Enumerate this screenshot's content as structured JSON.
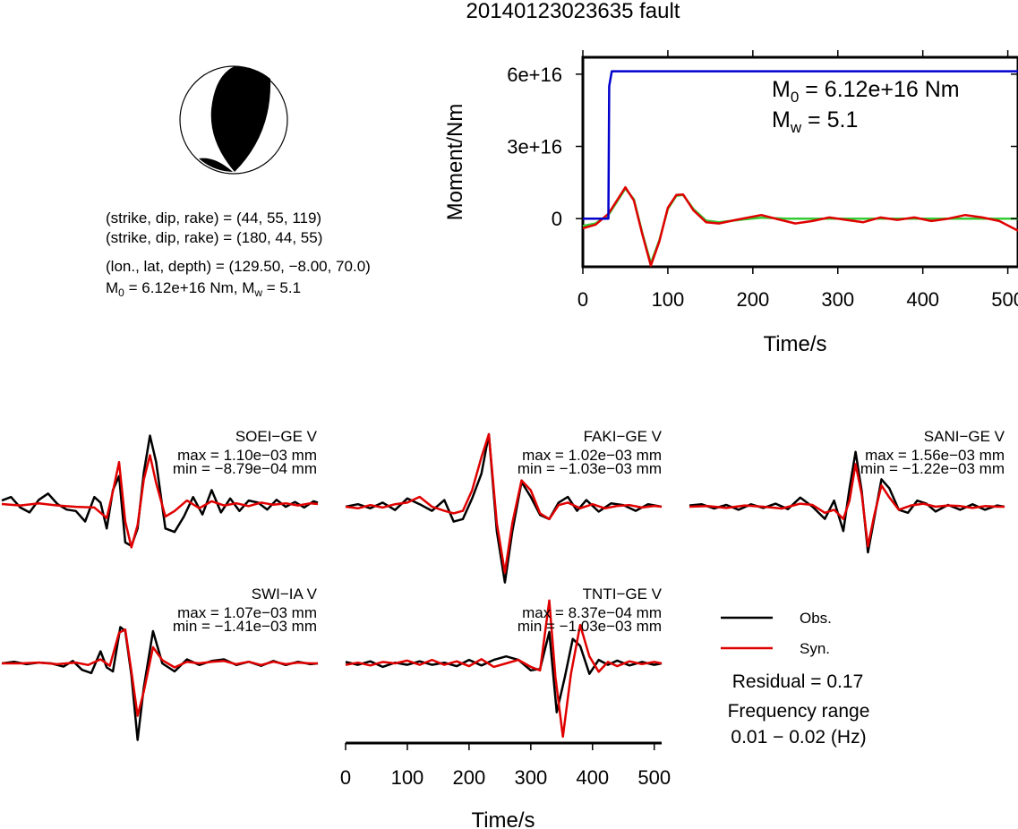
{
  "title": "20140123023635 fault",
  "mechanism": {
    "line1": "(strike, dip, rake) = (44, 55, 119)",
    "line2": "(strike, dip, rake) = (180, 44, 55)",
    "line3": "(lon., lat, depth) = (129.50, −8.00, 70.0)",
    "m0_label": "M",
    "m0_sub": "0",
    "m0_value": " = 6.12e+16 Nm, M",
    "mw_sub": "w",
    "mw_value": " = 5.1"
  },
  "moment_panel": {
    "m0_text": "M",
    "m0_sub": "0",
    "m0_value": " = 6.12e+16 Nm",
    "mw_text": "M",
    "mw_sub": "w",
    "mw_value": " = 5.1"
  },
  "legend": {
    "obs": "Obs.",
    "syn": "Syn.",
    "residual": "Residual = 0.17",
    "freq_title": "Frequency range",
    "freq_range": "0.01 − 0.02 (Hz)"
  },
  "colors": {
    "obs": "#000000",
    "syn": "#e00000",
    "step": "#0000cc",
    "green": "#33cc33"
  },
  "chart_data": [
    {
      "type": "line",
      "title": "",
      "xlabel": "Time/s",
      "ylabel": "Moment/Nm",
      "xlim": [
        0,
        512
      ],
      "ylim": [
        -20000000000000000,
        67000000000000000
      ],
      "xticks": [
        0,
        100,
        200,
        300,
        400,
        500
      ],
      "xtick_labels": [
        "0",
        "100",
        "200",
        "300",
        "400",
        "500"
      ],
      "yticks": [
        0,
        30000000000000000,
        60000000000000000
      ],
      "ytick_labels": [
        "0",
        "3e+16",
        "6e+16"
      ],
      "series": [
        {
          "color": "#0000cc",
          "x": [
            0,
            30,
            31,
            34,
            512
          ],
          "y": [
            0,
            0,
            55000000000000000,
            61200000000000000,
            61200000000000000
          ]
        },
        {
          "color": "#33cc33",
          "x": [
            0,
            15,
            30,
            40,
            50,
            60,
            70,
            80,
            90,
            100,
            110,
            118,
            130,
            145,
            160,
            190,
            210,
            240,
            280,
            512
          ],
          "y": [
            -3000000000000000,
            -2000000000000000,
            1500000000000000,
            7000000000000000,
            12500000000000000,
            8000000000000000,
            -6000000000000000,
            -18500000000000000,
            -9000000000000000,
            4000000000000000,
            9500000000000000,
            9800000000000000,
            4000000000000000,
            -800000000000000,
            -1500000000000000,
            -300000000000000,
            400000000000000,
            0,
            0,
            0
          ]
        },
        {
          "color": "#e00000",
          "x": [
            0,
            15,
            30,
            40,
            50,
            60,
            70,
            80,
            90,
            100,
            110,
            118,
            130,
            145,
            160,
            180,
            210,
            230,
            250,
            270,
            290,
            310,
            330,
            350,
            370,
            390,
            410,
            430,
            450,
            470,
            490,
            512
          ],
          "y": [
            -4000000000000000,
            -2500000000000000,
            2000000000000000,
            7500000000000000,
            13000000000000000,
            7500000000000000,
            -6500000000000000,
            -19500000000000000,
            -9500000000000000,
            4500000000000000,
            9800000000000000,
            10000000000000000,
            3500000000000000,
            -1500000000000000,
            -2000000000000000,
            -500000000000000,
            1500000000000000,
            -300000000000000,
            -2000000000000000,
            -1000000000000000,
            500000000000000,
            -500000000000000,
            -1500000000000000,
            500000000000000,
            -500000000000000,
            500000000000000,
            -1000000000000000,
            0,
            1500000000000000,
            500000000000000,
            -1000000000000000,
            -5000000000000000
          ]
        }
      ]
    },
    {
      "type": "line",
      "title": "SOEI−GE V",
      "max_text": "max = 1.10e−03 mm",
      "min_text": "min = −8.79e−04 mm",
      "xlim": [
        0,
        512
      ],
      "ylim": [
        -1,
        1
      ],
      "series": [
        {
          "name": "Obs.",
          "color": "#000000",
          "x": [
            0,
            15,
            30,
            45,
            60,
            75,
            90,
            105,
            120,
            135,
            150,
            160,
            170,
            180,
            190,
            200,
            210,
            220,
            230,
            240,
            250,
            265,
            280,
            295,
            310,
            325,
            340,
            355,
            370,
            385,
            400,
            415,
            430,
            445,
            460,
            475,
            490,
            505,
            512
          ],
          "y": [
            0.05,
            0.1,
            -0.05,
            -0.12,
            0.06,
            0.15,
            0.0,
            -0.08,
            -0.1,
            -0.25,
            0.1,
            0.02,
            -0.35,
            0.2,
            0.4,
            -0.55,
            -0.6,
            -0.35,
            0.45,
            0.98,
            0.6,
            -0.35,
            -0.4,
            -0.18,
            0.1,
            -0.15,
            0.2,
            -0.12,
            0.08,
            -0.1,
            0.05,
            0.02,
            -0.08,
            0.06,
            -0.04,
            0.03,
            -0.05,
            0.04,
            0.02
          ]
        },
        {
          "name": "Syn.",
          "color": "#e00000",
          "x": [
            0,
            30,
            60,
            90,
            120,
            150,
            170,
            180,
            190,
            200,
            210,
            220,
            230,
            240,
            250,
            265,
            280,
            300,
            320,
            340,
            360,
            380,
            400,
            420,
            440,
            460,
            480,
            500,
            512
          ],
          "y": [
            0.0,
            -0.02,
            0.01,
            -0.02,
            -0.04,
            -0.05,
            -0.2,
            0.18,
            0.6,
            -0.25,
            -0.62,
            -0.3,
            0.35,
            0.7,
            0.3,
            -0.18,
            -0.1,
            0.05,
            -0.06,
            0.04,
            -0.02,
            0.01,
            -0.03,
            0.02,
            -0.01,
            0.01,
            -0.02,
            0.01,
            0.0
          ]
        }
      ]
    },
    {
      "type": "line",
      "title": "FAKI−GE V",
      "max_text": "max = 1.02e−03 mm",
      "min_text": "min = −1.03e−03 mm",
      "xlim": [
        0,
        512
      ],
      "ylim": [
        -1,
        1
      ],
      "series": [
        {
          "name": "Obs.",
          "color": "#000000",
          "x": [
            0,
            20,
            40,
            60,
            80,
            100,
            120,
            140,
            160,
            175,
            190,
            205,
            220,
            232,
            245,
            258,
            270,
            285,
            300,
            315,
            330,
            345,
            360,
            375,
            390,
            410,
            430,
            450,
            470,
            490,
            512
          ],
          "y": [
            0.0,
            0.03,
            -0.02,
            0.05,
            -0.04,
            0.1,
            0.03,
            -0.05,
            0.08,
            -0.18,
            -0.15,
            0.1,
            0.4,
            0.88,
            -0.3,
            -0.92,
            -0.3,
            0.3,
            0.12,
            -0.1,
            -0.15,
            0.05,
            0.12,
            -0.05,
            0.08,
            -0.06,
            0.04,
            0.02,
            -0.05,
            0.03,
            0.0
          ]
        },
        {
          "name": "Syn.",
          "color": "#e00000",
          "x": [
            0,
            20,
            40,
            60,
            80,
            100,
            120,
            140,
            160,
            175,
            190,
            205,
            220,
            232,
            245,
            258,
            270,
            285,
            300,
            315,
            330,
            345,
            360,
            380,
            400,
            420,
            440,
            460,
            480,
            500,
            512
          ],
          "y": [
            0.0,
            -0.02,
            0.02,
            -0.01,
            0.03,
            0.05,
            0.12,
            0.0,
            -0.05,
            -0.08,
            -0.05,
            0.2,
            0.6,
            0.88,
            -0.2,
            -0.8,
            -0.2,
            0.32,
            0.2,
            -0.08,
            -0.15,
            0.02,
            0.05,
            -0.02,
            0.03,
            -0.02,
            0.01,
            0.02,
            -0.01,
            0.01,
            0.0
          ]
        }
      ]
    },
    {
      "type": "line",
      "title": "SANI−GE V",
      "max_text": "max = 1.56e−03 mm",
      "min_text": "min = −1.22e−03 mm",
      "xlim": [
        0,
        512
      ],
      "ylim": [
        -1,
        1
      ],
      "series": [
        {
          "name": "Obs.",
          "color": "#000000",
          "x": [
            0,
            20,
            40,
            60,
            80,
            100,
            120,
            140,
            160,
            180,
            200,
            220,
            235,
            250,
            260,
            270,
            280,
            290,
            300,
            312,
            325,
            340,
            355,
            370,
            385,
            400,
            420,
            440,
            460,
            480,
            500,
            512
          ],
          "y": [
            0.02,
            0.04,
            -0.03,
            0.03,
            -0.05,
            0.04,
            -0.02,
            0.05,
            -0.04,
            0.15,
            0.0,
            -0.2,
            0.1,
            -0.4,
            0.3,
            0.9,
            0.25,
            -0.75,
            -0.2,
            0.45,
            0.3,
            -0.05,
            -0.1,
            0.1,
            0.05,
            -0.08,
            0.03,
            -0.05,
            0.04,
            -0.05,
            0.02,
            0.0
          ]
        },
        {
          "name": "Syn.",
          "color": "#e00000",
          "x": [
            0,
            30,
            60,
            90,
            120,
            150,
            180,
            200,
            220,
            235,
            250,
            260,
            270,
            280,
            290,
            300,
            312,
            325,
            340,
            360,
            380,
            400,
            420,
            440,
            460,
            480,
            500,
            512
          ],
          "y": [
            0.0,
            0.01,
            -0.02,
            0.02,
            0.0,
            -0.03,
            0.05,
            0.03,
            -0.1,
            -0.05,
            -0.2,
            0.1,
            0.7,
            0.2,
            -0.65,
            -0.15,
            0.35,
            0.15,
            -0.05,
            0.02,
            0.05,
            0.0,
            0.02,
            0.01,
            -0.02,
            0.01,
            0.0,
            0.0
          ]
        }
      ]
    },
    {
      "type": "line",
      "title": "SWI−IA V",
      "max_text": "max = 1.07e−03 mm",
      "min_text": "min = −1.41e−03 mm",
      "xlim": [
        0,
        512
      ],
      "ylim": [
        -1,
        1
      ],
      "series": [
        {
          "name": "Obs.",
          "color": "#000000",
          "x": [
            0,
            20,
            40,
            60,
            80,
            100,
            115,
            130,
            145,
            160,
            170,
            180,
            192,
            200,
            210,
            220,
            230,
            245,
            260,
            280,
            300,
            320,
            340,
            360,
            380,
            400,
            420,
            440,
            460,
            480,
            500,
            512
          ],
          "y": [
            0.0,
            0.02,
            -0.01,
            0.01,
            0.0,
            -0.04,
            0.03,
            -0.08,
            -0.12,
            0.15,
            -0.05,
            -0.1,
            0.45,
            0.4,
            -0.15,
            -0.95,
            -0.3,
            0.4,
            0.0,
            -0.1,
            0.05,
            -0.02,
            0.03,
            0.05,
            -0.02,
            0.02,
            -0.03,
            0.03,
            -0.02,
            0.02,
            -0.01,
            0.0
          ]
        },
        {
          "name": "Syn.",
          "color": "#e00000",
          "x": [
            0,
            30,
            60,
            90,
            120,
            140,
            160,
            175,
            190,
            200,
            210,
            220,
            230,
            245,
            260,
            280,
            300,
            320,
            340,
            360,
            380,
            400,
            420,
            440,
            460,
            480,
            500,
            512
          ],
          "y": [
            0.0,
            0.0,
            0.01,
            -0.01,
            0.01,
            -0.02,
            0.05,
            -0.03,
            0.38,
            0.42,
            -0.1,
            -0.65,
            -0.35,
            0.2,
            0.04,
            -0.05,
            0.02,
            0.0,
            0.02,
            0.03,
            -0.01,
            0.02,
            -0.02,
            0.02,
            -0.01,
            0.01,
            0.0,
            0.0
          ]
        }
      ]
    },
    {
      "type": "line",
      "title": "TNTI−GE V",
      "max_text": "max = 8.37e−04 mm",
      "min_text": "min = −1.03e−03 mm",
      "xlabel": "Time/s",
      "xlim": [
        0,
        512
      ],
      "ylim": [
        -1,
        1
      ],
      "xticks": [
        0,
        100,
        200,
        300,
        400,
        500
      ],
      "xtick_labels": [
        "0",
        "100",
        "200",
        "300",
        "400",
        "500"
      ],
      "series": [
        {
          "name": "Obs.",
          "color": "#000000",
          "x": [
            0,
            20,
            40,
            60,
            80,
            100,
            120,
            140,
            160,
            180,
            200,
            220,
            240,
            260,
            280,
            300,
            315,
            330,
            342,
            355,
            368,
            380,
            395,
            410,
            425,
            440,
            460,
            480,
            500,
            512
          ],
          "y": [
            0.02,
            -0.02,
            0.03,
            -0.05,
            0.01,
            -0.02,
            0.03,
            -0.02,
            0.01,
            -0.04,
            0.05,
            -0.03,
            0.05,
            0.1,
            0.05,
            -0.1,
            -0.08,
            0.45,
            -0.7,
            -0.2,
            0.35,
            0.25,
            -0.15,
            0.05,
            -0.02,
            0.04,
            -0.03,
            0.02,
            -0.02,
            0.0
          ]
        },
        {
          "name": "Syn.",
          "color": "#e00000",
          "x": [
            0,
            20,
            40,
            60,
            80,
            100,
            120,
            140,
            160,
            180,
            200,
            220,
            240,
            260,
            280,
            300,
            315,
            330,
            340,
            352,
            365,
            380,
            395,
            410,
            425,
            440,
            460,
            480,
            500,
            512
          ],
          "y": [
            -0.02,
            0.01,
            -0.03,
            0.02,
            0.0,
            0.04,
            -0.02,
            0.05,
            -0.02,
            0.03,
            -0.04,
            0.06,
            -0.05,
            0.0,
            0.05,
            -0.05,
            -0.1,
            0.9,
            -0.2,
            -1.05,
            -0.15,
            0.55,
            0.1,
            -0.12,
            0.02,
            -0.04,
            0.03,
            -0.01,
            0.02,
            0.0
          ]
        }
      ]
    }
  ]
}
